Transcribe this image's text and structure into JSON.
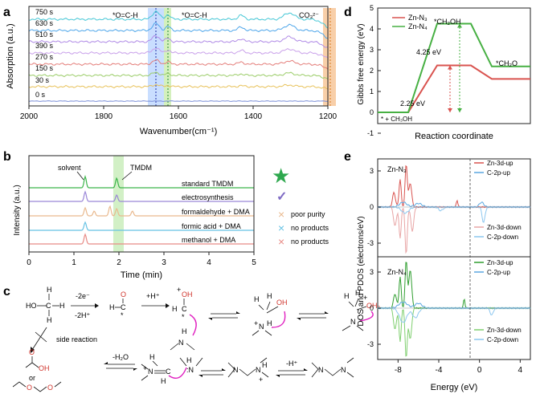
{
  "panels": {
    "a": {
      "letter": "a",
      "ylabel": "Absorption (a.u.)",
      "xlabel": "Wavenumber(cm⁻¹)",
      "xticks": [
        "2000",
        "1800",
        "1600",
        "1400",
        "1200"
      ],
      "annotations": [
        "*O=C-H",
        "*O=C-H",
        "CO₃²⁻"
      ],
      "time_labels": [
        "750 s",
        "630 s",
        "510 s",
        "390 s",
        "270 s",
        "150 s",
        "30 s",
        "0 s"
      ],
      "trace_colors": [
        "#45c7d6",
        "#4ea6ea",
        "#b08be6",
        "#c9a0ea",
        "#e47e7a",
        "#9ccd6a",
        "#e8c25a",
        "#7b8fd8"
      ],
      "highlight_colors": {
        "blue": "#bcd6ff",
        "green": "#cfeeb6",
        "orange": "#f7c79a"
      }
    },
    "b": {
      "letter": "b",
      "ylabel": "Intensity (a.u.)",
      "xlabel": "Time (min)",
      "xticks": [
        "0",
        "1",
        "2",
        "3",
        "4",
        "5"
      ],
      "peak_labels": [
        "solvent",
        "TMDM"
      ],
      "traces": [
        {
          "label": "standard TMDM",
          "color": "#3bb54a"
        },
        {
          "label": "electrosynthesis",
          "color": "#9a86d8"
        },
        {
          "label": "formaldehyde + DMA",
          "color": "#e9b98e"
        },
        {
          "label": "formic acid + DMA",
          "color": "#66c2e4"
        },
        {
          "label": "methanol + DMA",
          "color": "#e88b86"
        }
      ],
      "legend": [
        {
          "mark": "★",
          "text": "",
          "color": "#2ea84e"
        },
        {
          "mark": "✓",
          "text": "",
          "color": "#7e6bc4"
        },
        {
          "mark": "×",
          "text": "poor purity",
          "color": "#e9b98e"
        },
        {
          "mark": "×",
          "text": "no products",
          "color": "#66c2e4"
        },
        {
          "mark": "×",
          "text": "no products",
          "color": "#e88b86"
        }
      ]
    },
    "c": {
      "letter": "c",
      "labels": {
        "methanol": "HO-CH3",
        "step1_top": "-2e⁻",
        "step1_bot": "-2H⁺",
        "step2_top": "+H⁺",
        "side_reaction": "side reaction",
        "side_or": "or",
        "water_loss": "-H₂O",
        "proton_loss": "-H⁺"
      }
    },
    "d": {
      "letter": "d",
      "ylabel": "Gibbs free energy (eV)",
      "xlabel": "Reaction coordinate",
      "yticks": [
        "-1",
        "0",
        "1",
        "2",
        "3",
        "4",
        "5"
      ],
      "legend": [
        {
          "label": "Zn-N₃",
          "color": "#d9534f"
        },
        {
          "label": "Zn-N₄",
          "color": "#47b043"
        }
      ],
      "levels": {
        "Zn-N3": [
          0,
          2.25,
          1.6
        ],
        "Zn-N4": [
          0,
          4.25,
          2.2
        ]
      },
      "labels": {
        "ch2oh": "*CH₂OH",
        "ch2o": "*CH₂O",
        "ch3oh": "* + CH₃OH",
        "e1": "4.25 eV",
        "e2": "2.25 eV"
      }
    },
    "e": {
      "letter": "e",
      "ylabel": "DOS and PDOS (electrons/eV)",
      "xlabel": "Energy (eV)",
      "xticks": [
        "-8",
        "-4",
        "0",
        "4"
      ],
      "yticks_top": [
        "3",
        "0",
        "-3"
      ],
      "yticks_bottom": [
        "3",
        "0",
        "-3"
      ],
      "top_title": "Zn-N₃",
      "bottom_title": "Zn-N₄",
      "top_legend": [
        {
          "label": "Zn-3d-up",
          "color": "#d9534f"
        },
        {
          "label": "C-2p-up",
          "color": "#5aa7e0"
        },
        {
          "label": "Zn-3d-down",
          "color": "#e8a5a5"
        },
        {
          "label": "C-2p-down",
          "color": "#8cc7ef"
        }
      ],
      "bottom_legend": [
        {
          "label": "Zn-3d-up",
          "color": "#2f9e2f"
        },
        {
          "label": "C-2p-up",
          "color": "#5aa7e0"
        },
        {
          "label": "Zn-3d-down",
          "color": "#7fcf6f"
        },
        {
          "label": "C-2p-down",
          "color": "#8cc7ef"
        }
      ]
    }
  }
}
